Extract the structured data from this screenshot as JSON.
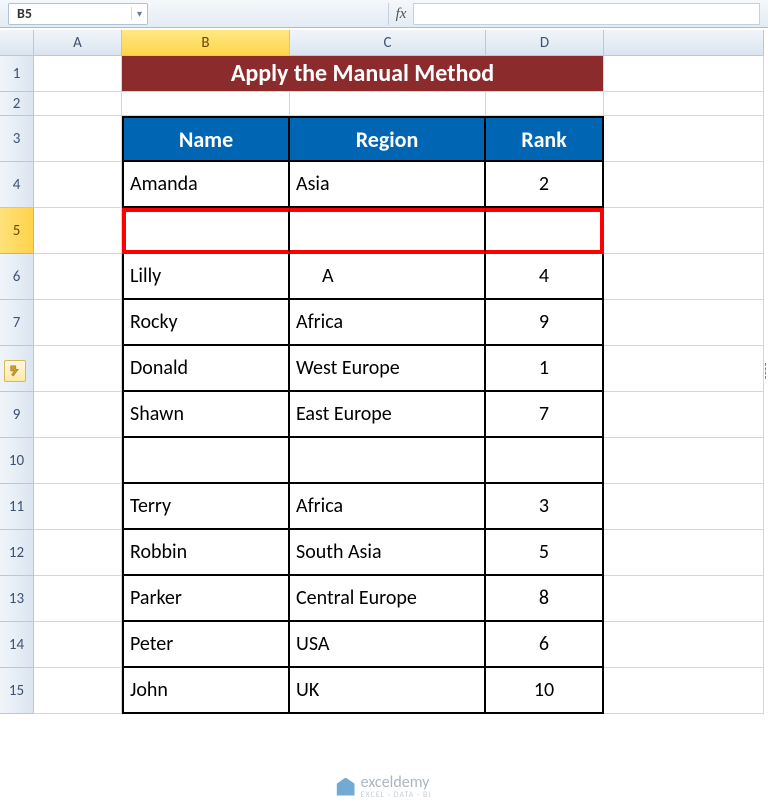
{
  "namebox": "B5",
  "fx_label": "fx",
  "columns": [
    "A",
    "B",
    "C",
    "D"
  ],
  "active_column": "B",
  "active_row": 5,
  "title": "Apply the Manual Method",
  "table_header": {
    "name": "Name",
    "region": "Region",
    "rank": "Rank"
  },
  "rows": [
    {
      "n": 4,
      "name": "Amanda",
      "region": "Asia",
      "rank": "2"
    },
    {
      "n": 5,
      "name": "",
      "region": "",
      "rank": "",
      "highlight": true
    },
    {
      "n": 6,
      "name": "Lilly",
      "region": "A",
      "rank": "4",
      "paste_icon": true
    },
    {
      "n": 7,
      "name": "Rocky",
      "region": "Africa",
      "rank": "9"
    },
    {
      "n": 8,
      "name": "Donald",
      "region": "West Europe",
      "rank": "1"
    },
    {
      "n": 9,
      "name": "Shawn",
      "region": "East Europe",
      "rank": "7"
    },
    {
      "n": 10,
      "name": "",
      "region": "",
      "rank": ""
    },
    {
      "n": 11,
      "name": "Terry",
      "region": "Africa",
      "rank": "3"
    },
    {
      "n": 12,
      "name": "Robbin",
      "region": "South Asia",
      "rank": "5"
    },
    {
      "n": 13,
      "name": "Parker",
      "region": "Central Europe",
      "rank": "8"
    },
    {
      "n": 14,
      "name": "Peter",
      "region": "USA",
      "rank": "6"
    },
    {
      "n": 15,
      "name": "John",
      "region": "UK",
      "rank": "10"
    }
  ],
  "watermark": {
    "brand": "exceldemy",
    "sub": "EXCEL · DATA · BI"
  },
  "colors": {
    "title_bg": "#8b2b2b",
    "header_bg": "#0066b3",
    "highlight_border": "#ff0000",
    "active_header_bg": "#ffd44a"
  }
}
